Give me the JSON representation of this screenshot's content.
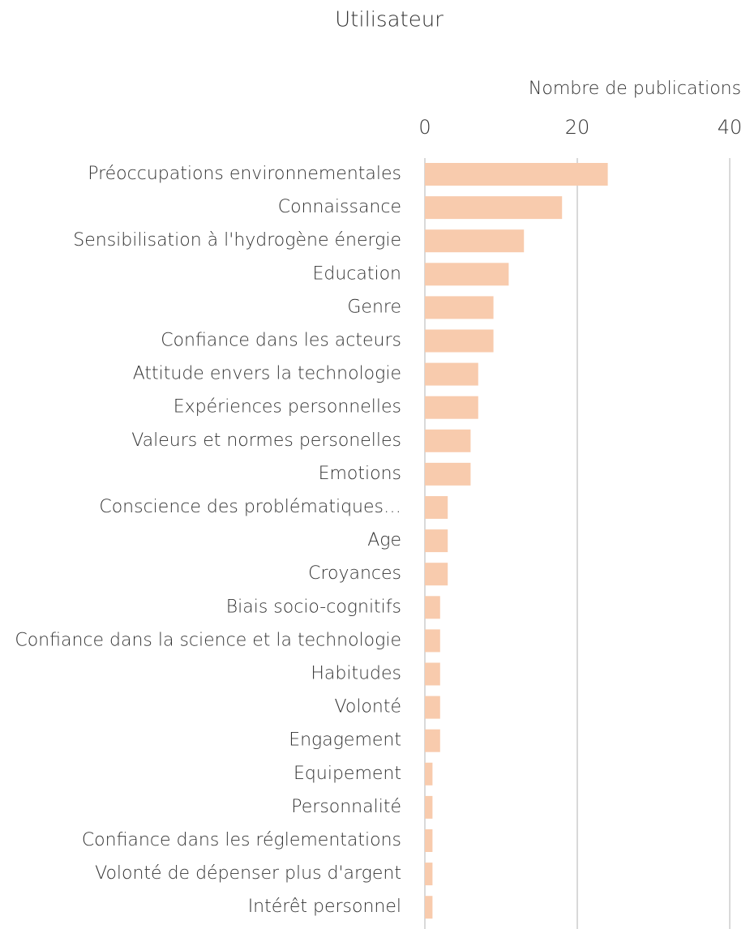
{
  "chart_data": {
    "type": "bar",
    "orientation": "horizontal",
    "title": "Utilisateur",
    "x_label": "Nombre de publications",
    "categories": [
      "Préoccupations environnementales",
      "Connaissance",
      "Sensibilisation à l'hydrogène énergie",
      "Education",
      "Genre",
      "Confiance dans les acteurs",
      "Attitude envers la technologie",
      "Expériences personnelles",
      "Valeurs et normes personelles",
      "Emotions",
      "Conscience des problématiques…",
      "Age",
      "Croyances",
      "Biais socio-cognitifs",
      "Confiance dans la science et la technologie",
      "Habitudes",
      "Volonté",
      "Engagement",
      "Equipement",
      "Personnalité",
      "Confiance dans les réglementations",
      "Volonté de dépenser plus d'argent",
      "Intérêt personnel"
    ],
    "values": [
      24,
      18,
      13,
      11,
      9,
      9,
      7,
      7,
      6,
      6,
      3,
      3,
      3,
      2,
      2,
      2,
      2,
      2,
      1,
      1,
      1,
      1,
      1
    ],
    "color": "#f8cbad",
    "xlim": [
      0,
      40
    ],
    "xticks": [
      0,
      20,
      40
    ],
    "grid": true
  }
}
